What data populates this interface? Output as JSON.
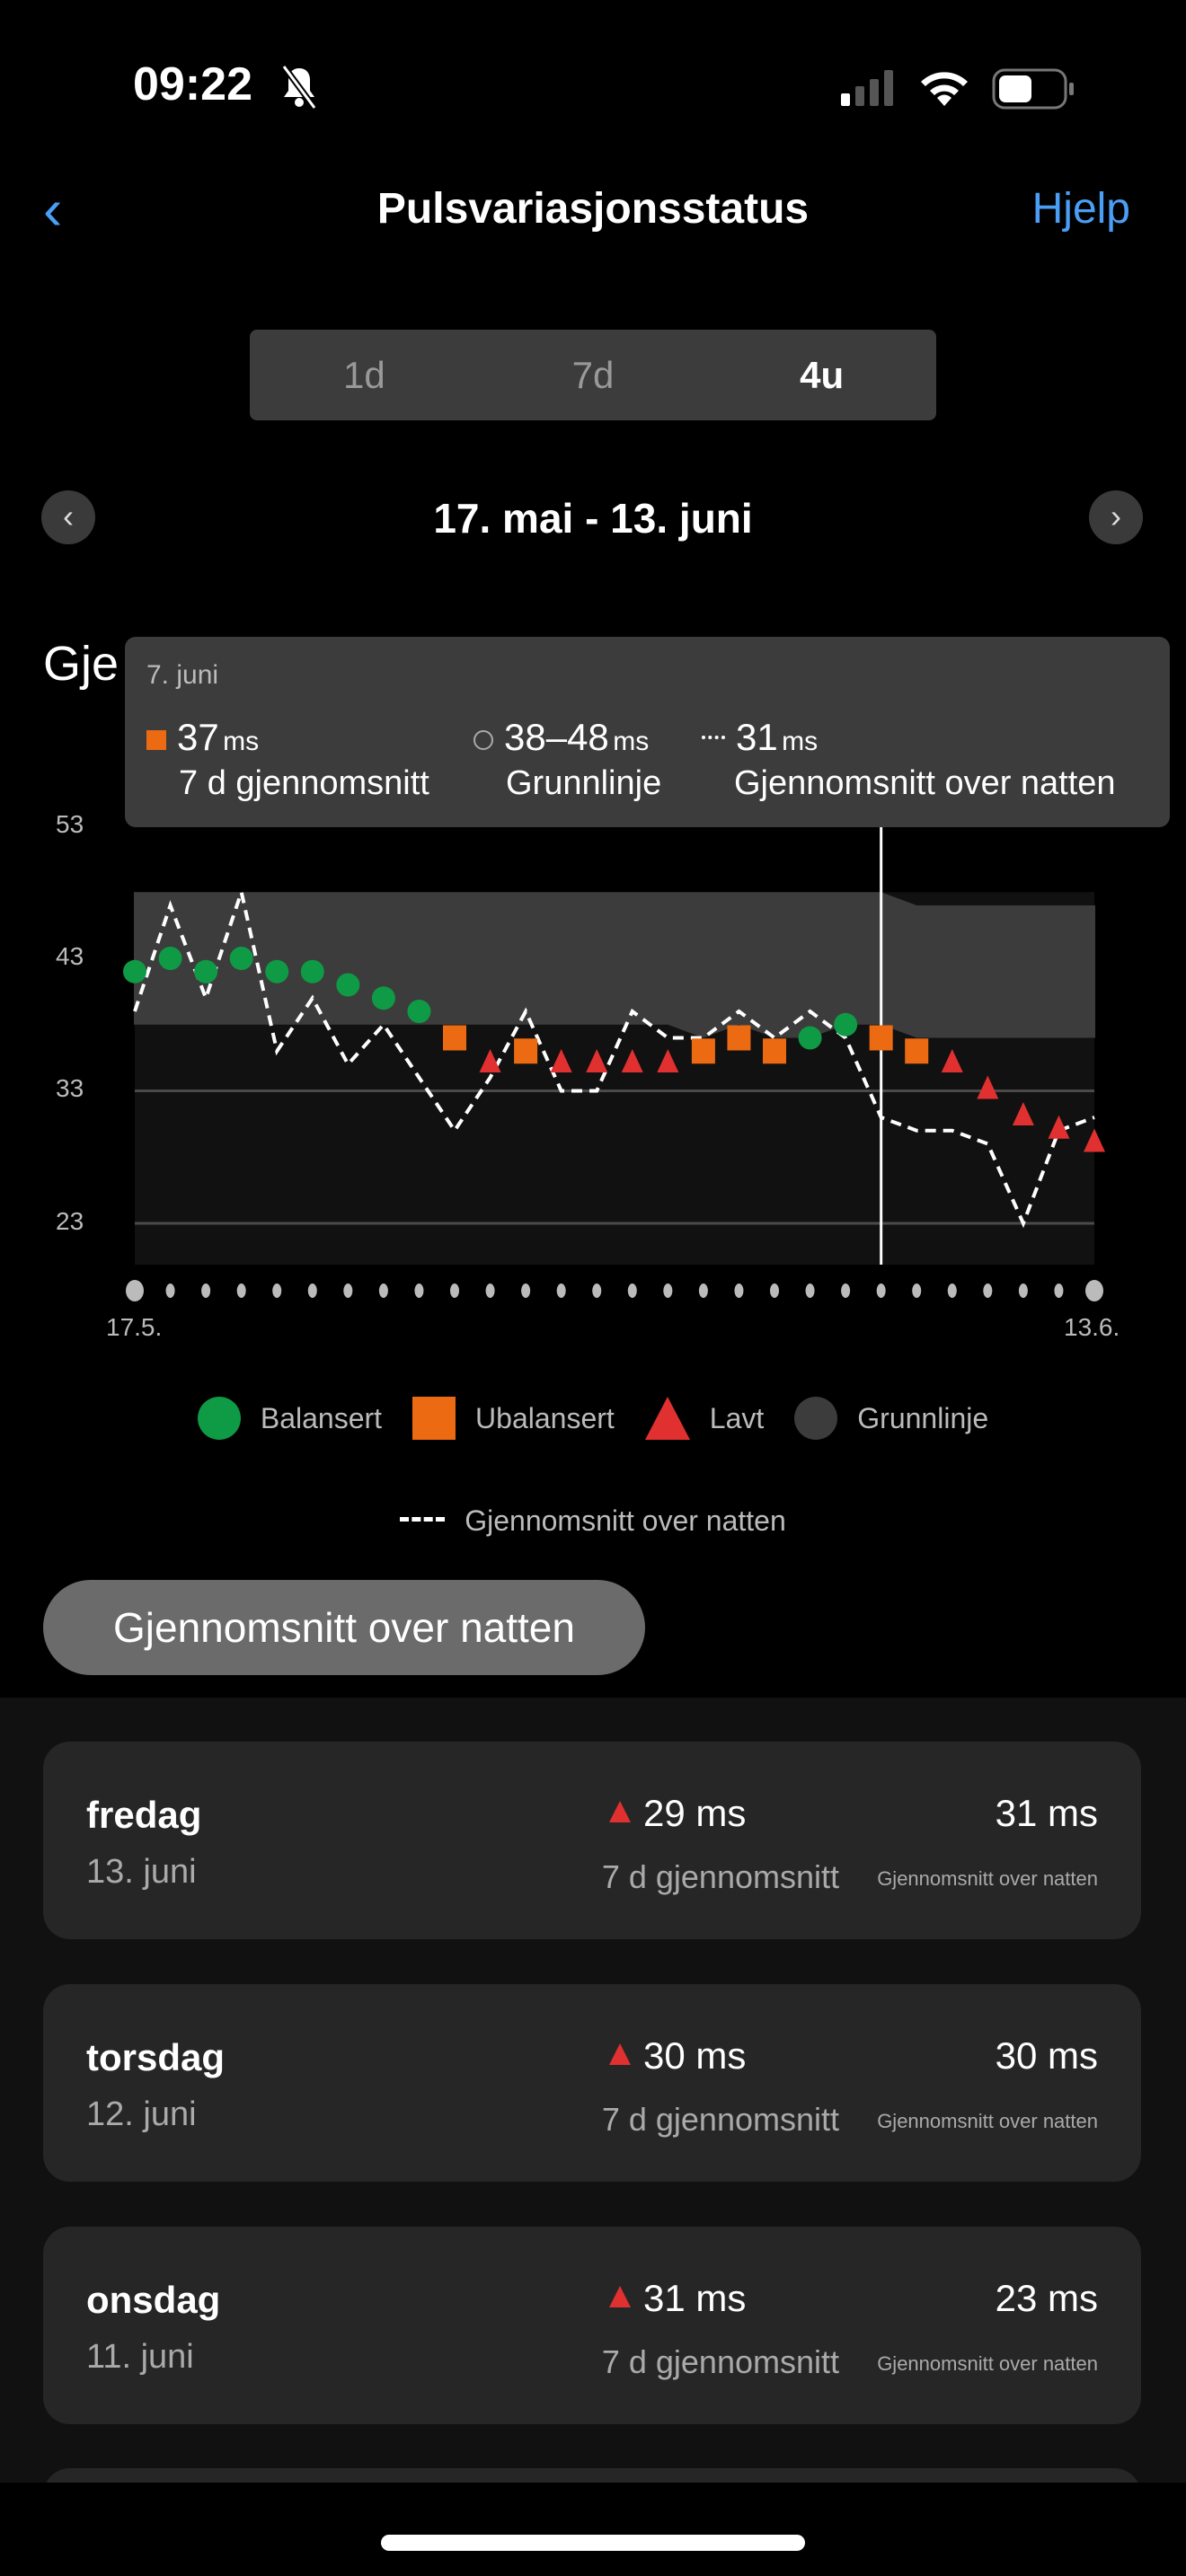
{
  "status": {
    "time": "09:22",
    "icons": [
      "bell-slash-icon",
      "signal-icon",
      "wifi-icon",
      "battery-icon"
    ]
  },
  "header": {
    "title": "Pulsvariasjonsstatus",
    "help": "Hjelp",
    "back_icon": "chevron-left-icon"
  },
  "tabs": [
    {
      "label": "1d"
    },
    {
      "label": "7d"
    },
    {
      "label": "4u",
      "selected": true
    }
  ],
  "range": {
    "label": "17. mai - 13. juni"
  },
  "section_title": "Gje",
  "tooltip": {
    "date": "7. juni",
    "avg_value": "37",
    "avg_unit": "ms",
    "avg_label": "7 d gjennomsnitt",
    "base_value": "38–48",
    "base_unit": "ms",
    "base_label": "Grunnlinje",
    "night_value": "31",
    "night_unit": "ms",
    "night_label": "Gjennomsnitt over natten"
  },
  "colors": {
    "balanced": "#0f9a45",
    "unbalanced": "#ec6a12",
    "low": "#e03030",
    "baseline": "#3c3c3c",
    "accent": "#4a9ff5"
  },
  "chart_data": {
    "type": "scatter",
    "y_ticks": [
      "53",
      "43",
      "33",
      "23"
    ],
    "ylim": [
      20,
      53
    ],
    "x_labels": [
      "17.5.",
      "13.6."
    ],
    "selected_index": 21,
    "seven_day_avg": [
      42,
      43,
      42,
      43,
      42,
      42,
      41,
      40,
      39,
      37,
      35,
      36,
      35,
      35,
      35,
      35,
      36,
      37,
      36,
      37,
      38,
      37,
      36,
      35,
      33,
      31,
      30,
      29
    ],
    "status": [
      "b",
      "b",
      "b",
      "b",
      "b",
      "b",
      "b",
      "b",
      "b",
      "u",
      "l",
      "u",
      "l",
      "l",
      "l",
      "l",
      "u",
      "u",
      "u",
      "b",
      "b",
      "u",
      "u",
      "l",
      "l",
      "l",
      "l",
      "l"
    ],
    "overnight_avg": [
      39,
      47,
      40,
      48,
      36,
      40,
      35,
      38,
      34,
      30,
      34,
      39,
      33,
      33,
      39,
      37,
      37,
      39,
      37,
      39,
      37,
      31,
      30,
      30,
      29,
      23,
      30,
      31
    ],
    "baseline_low": [
      38,
      38,
      38,
      38,
      38,
      38,
      38,
      38,
      38,
      38,
      38,
      38,
      38,
      38,
      38,
      38,
      37,
      38,
      37,
      37,
      38,
      38,
      37,
      37,
      37,
      37,
      37,
      37
    ],
    "baseline_high": [
      48,
      48,
      48,
      48,
      48,
      48,
      48,
      48,
      48,
      48,
      48,
      48,
      48,
      48,
      48,
      48,
      48,
      48,
      48,
      48,
      48,
      48,
      47,
      47,
      47,
      47,
      47,
      47
    ]
  },
  "legend": {
    "items": [
      {
        "label": "Balansert"
      },
      {
        "label": "Ubalansert"
      },
      {
        "label": "Lavt"
      },
      {
        "label": "Grunnlinje"
      }
    ],
    "line": "Gjennomsnitt over natten"
  },
  "pill": "Gjennomsnitt over natten",
  "days": [
    {
      "day": "fredag",
      "date": "13. juni",
      "avg": "29 ms",
      "avg_label": "7 d gjennomsnitt",
      "night": "31 ms",
      "night_label": "Gjennomsnitt over natten"
    },
    {
      "day": "torsdag",
      "date": "12. juni",
      "avg": "30 ms",
      "avg_label": "7 d gjennomsnitt",
      "night": "30 ms",
      "night_label": "Gjennomsnitt over natten"
    },
    {
      "day": "onsdag",
      "date": "11. juni",
      "avg": "31 ms",
      "avg_label": "7 d gjennomsnitt",
      "night": "23 ms",
      "night_label": "Gjennomsnitt over natten"
    }
  ]
}
